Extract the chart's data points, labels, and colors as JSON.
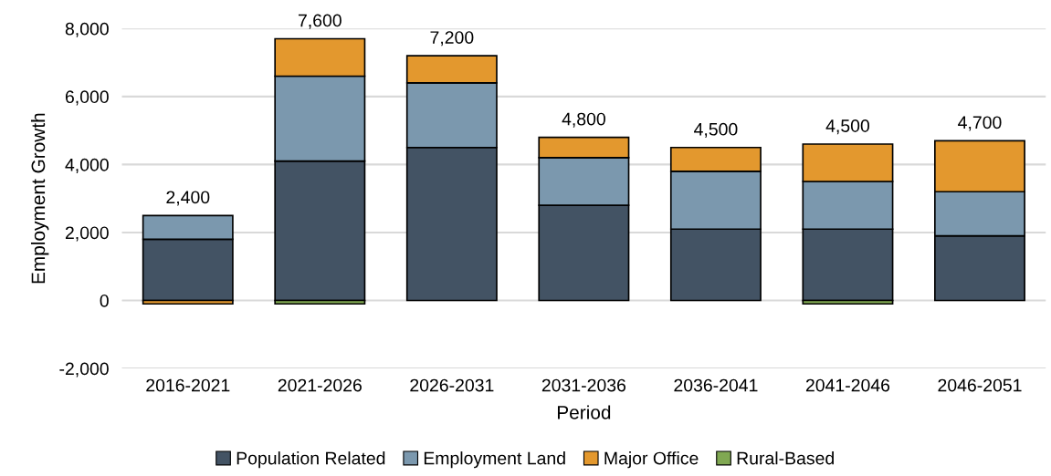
{
  "chart_data": {
    "type": "bar",
    "stacked": true,
    "xlabel": "Period",
    "ylabel": "Employment Growth",
    "categories": [
      "2016-2021",
      "2021-2026",
      "2026-2031",
      "2031-2036",
      "2036-2041",
      "2041-2046",
      "2046-2051"
    ],
    "series": [
      {
        "name": "Population Related",
        "color": "#435364",
        "values": [
          1800,
          4100,
          4500,
          2800,
          2100,
          2100,
          1900
        ]
      },
      {
        "name": "Employment Land",
        "color": "#7b98ae",
        "values": [
          700,
          2500,
          1900,
          1400,
          1700,
          1400,
          1300
        ]
      },
      {
        "name": "Major Office",
        "color": "#e3982e",
        "values": [
          -100,
          1100,
          800,
          600,
          700,
          1100,
          1500
        ]
      },
      {
        "name": "Rural-Based",
        "color": "#80a852",
        "values": [
          0,
          -100,
          0,
          0,
          0,
          -100,
          0
        ]
      }
    ],
    "totals": [
      "2,400",
      "7,600",
      "7,200",
      "4,800",
      "4,500",
      "4,500",
      "4,700"
    ],
    "ylim": [
      -2000,
      8000
    ],
    "yticks": [
      {
        "value": -2000,
        "label": "-2,000"
      },
      0,
      {
        "value": 2000,
        "label": "2,000"
      },
      {
        "value": 4000,
        "label": "4,000"
      },
      {
        "value": 6000,
        "label": "6,000"
      },
      {
        "value": 8000,
        "label": "8,000"
      }
    ],
    "grid": "y",
    "legend": "bottom"
  }
}
